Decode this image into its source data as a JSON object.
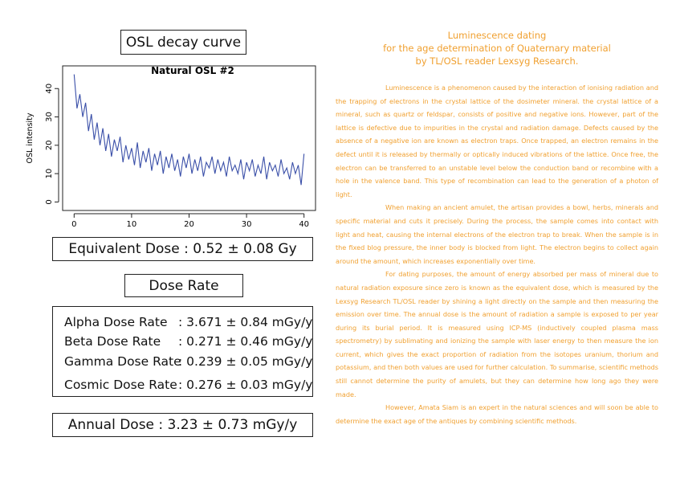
{
  "left": {
    "heading": "OSL decay curve",
    "equivalent_dose": "Equivalent Dose : 0.52 ± 0.08 Gy",
    "dose_rate_heading": "Dose Rate",
    "dose_rates": [
      {
        "label": "Alpha Dose Rate",
        "value": ": 3.671 ± 0.84 mGy/y"
      },
      {
        "label": "Beta Dose Rate",
        "value": ": 0.271 ± 0.46 mGy/y"
      },
      {
        "label": "Gamma Dose Rate",
        "value": ": 0.239 ± 0.05 mGy/y"
      },
      {
        "label": "Cosmic Dose Rate",
        "value": ": 0.276 ± 0.03 mGy/y"
      }
    ],
    "annual_dose": "Annual Dose : 3.23 ± 0.73 mGy/y"
  },
  "chart_data": {
    "type": "line",
    "title": "Natural OSL #2",
    "ylabel": "OSL intensity",
    "color": "#3a4fa8",
    "xlim": [
      -2,
      42
    ],
    "ylim": [
      -3,
      48
    ],
    "xticks": [
      0,
      10,
      20,
      30,
      40
    ],
    "yticks": [
      0,
      10,
      20,
      30,
      40
    ],
    "x": [
      0,
      0.5,
      1,
      1.5,
      2,
      2.5,
      3,
      3.5,
      4,
      4.5,
      5,
      5.5,
      6,
      6.5,
      7,
      7.5,
      8,
      8.5,
      9,
      9.5,
      10,
      10.5,
      11,
      11.5,
      12,
      12.5,
      13,
      13.5,
      14,
      14.5,
      15,
      15.5,
      16,
      16.5,
      17,
      17.5,
      18,
      18.5,
      19,
      19.5,
      20,
      20.5,
      21,
      21.5,
      22,
      22.5,
      23,
      23.5,
      24,
      24.5,
      25,
      25.5,
      26,
      26.5,
      27,
      27.5,
      28,
      28.5,
      29,
      29.5,
      30,
      30.5,
      31,
      31.5,
      32,
      32.5,
      33,
      33.5,
      34,
      34.5,
      35,
      35.5,
      36,
      36.5,
      37,
      37.5,
      38,
      38.5,
      39,
      39.5,
      40
    ],
    "values": [
      45,
      33,
      38,
      30,
      35,
      25,
      31,
      22,
      28,
      20,
      26,
      18,
      24,
      16,
      22,
      18,
      23,
      14,
      20,
      15,
      19,
      13,
      21,
      12,
      18,
      14,
      19,
      11,
      17,
      13,
      18,
      10,
      16,
      12,
      17,
      11,
      15,
      9,
      16,
      12,
      17,
      10,
      15,
      11,
      16,
      9,
      14,
      12,
      16,
      10,
      15,
      11,
      14,
      9,
      16,
      11,
      13,
      10,
      15,
      8,
      14,
      11,
      15,
      9,
      13,
      10,
      16,
      8,
      14,
      11,
      13,
      9,
      15,
      10,
      12,
      8,
      14,
      10,
      13,
      6,
      17
    ]
  },
  "right": {
    "title": [
      "Luminescence dating",
      "for the age determination of Quaternary material",
      "by TL/OSL reader Lexsyg Research."
    ],
    "paragraphs": [
      "Luminescence is a phenomenon caused by the interaction of ionising radiation and the trapping of electrons in the crystal lattice of the dosimeter mineral. the crystal lattice of a mineral, such as quartz or feldspar, consists of positive and negative ions. However, part of the lattice is defective due to impurities in the crystal and radiation damage. Defects caused by the absence of a negative ion are known as electron traps. Once trapped, an electron remains in the defect until it is released by thermally or optically induced vibrations of the lattice. Once free, the electron can be transferred to an unstable level below the conduction band or recombine with a hole in the valence band. This type of recombination can lead to the generation of a photon of light.",
      "When making an ancient amulet, the artisan provides a bowl, herbs, minerals and specific material and cuts it precisely. During the process, the sample comes into contact with light and heat, causing the internal electrons of the electron trap to break. When the sample is in the fixed blog pressure, the inner body is blocked from light. The electron begins to collect again around the amount, which increases exponentially over time.",
      "For dating purposes, the amount of energy absorbed per mass of mineral due to natural radiation exposure since zero is known as the equivalent dose, which is measured by the Lexsyg Research TL/OSL reader by shining a light directly on the sample and then measuring the emission over time. The annual dose is the amount of radiation a sample is exposed to per year during its burial period. It is measured using ICP-MS (inductively coupled plasma mass spectrometry) by sublimating and ionizing the sample with laser energy to then measure the ion current, which gives the exact proportion of radiation from the isotopes uranium, thorium and potassium, and then both values are used for further calculation. To summarise, scientific methods still cannot determine the purity of amulets, but they can determine how long ago they were made.",
      "However, Amata Siam is an expert in the natural sciences and will soon be able to determine the exact age of the antiques by combining scientific methods."
    ]
  }
}
